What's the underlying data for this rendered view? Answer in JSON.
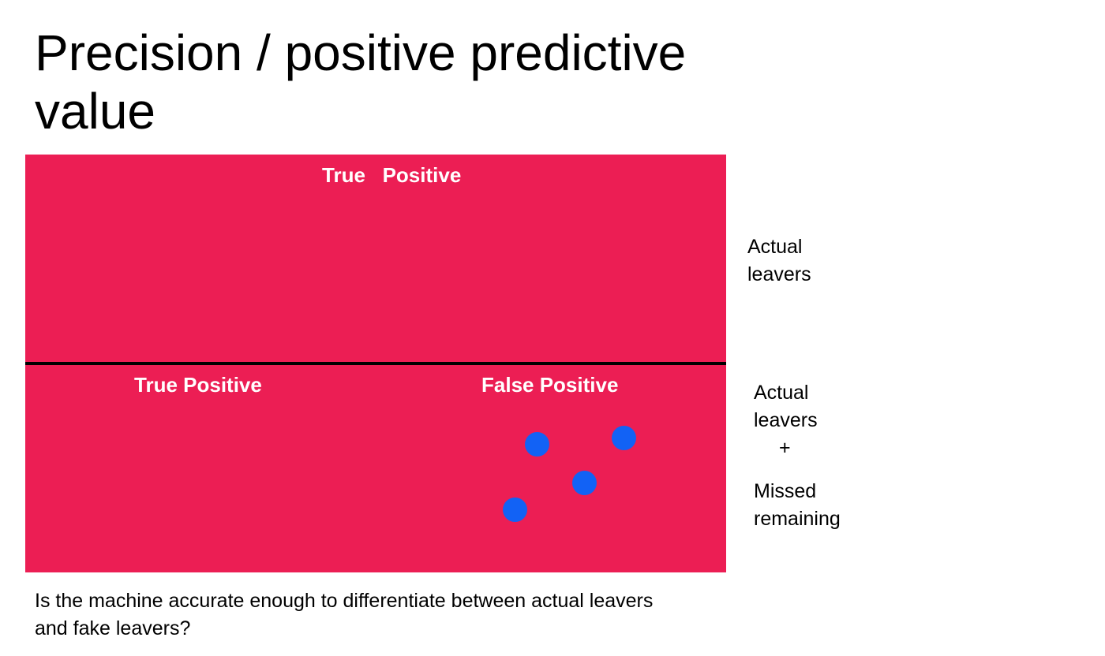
{
  "title": "Precision / positive predictive value",
  "colors": {
    "box_fill": "#ec1e54",
    "dot_fill": "#1262f5",
    "divider": "#000000",
    "label_text": "#ffffff"
  },
  "top_box": {
    "label": "True   Positive",
    "side_label": {
      "line1": "Actual",
      "line2": "leavers"
    }
  },
  "bottom_box": {
    "left_label": "True Positive",
    "right_label": "False Positive",
    "side_label": {
      "line1": "Actual",
      "line2": "leavers",
      "plus": "+",
      "line3": "Missed",
      "line4": "remaining"
    },
    "dot_shape": "circle-icon",
    "dot_count": 4
  },
  "question": "Is the machine accurate enough to differentiate between actual leavers and fake leavers?"
}
